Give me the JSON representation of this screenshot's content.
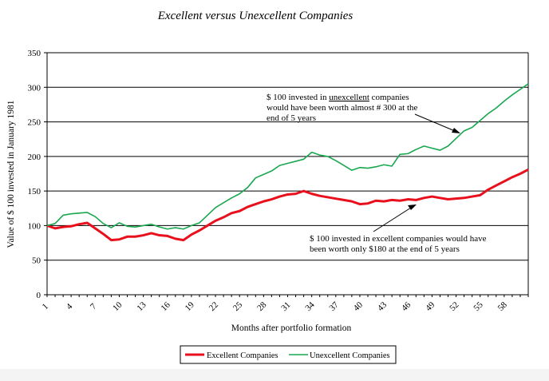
{
  "chart_data": {
    "type": "line",
    "title": "Excellent versus Unexcellent Companies",
    "xlabel": "Months after portfolio formation",
    "ylabel": "Value of $ 100 invested in January 1981",
    "ylim": [
      0,
      350
    ],
    "yticks": [
      0,
      50,
      100,
      150,
      200,
      250,
      300,
      350
    ],
    "xlim": [
      1,
      61
    ],
    "xticks": [
      1,
      4,
      7,
      10,
      13,
      16,
      19,
      22,
      25,
      28,
      31,
      34,
      37,
      40,
      43,
      46,
      49,
      52,
      55,
      58
    ],
    "grid": "horizontal",
    "legend_position": "bottom",
    "x": [
      1,
      2,
      3,
      4,
      5,
      6,
      7,
      8,
      9,
      10,
      11,
      12,
      13,
      14,
      15,
      16,
      17,
      18,
      19,
      20,
      21,
      22,
      23,
      24,
      25,
      26,
      27,
      28,
      29,
      30,
      31,
      32,
      33,
      34,
      35,
      36,
      37,
      38,
      39,
      40,
      41,
      42,
      43,
      44,
      45,
      46,
      47,
      48,
      49,
      50,
      51,
      52,
      53,
      54,
      55,
      56,
      57,
      58,
      59,
      60,
      61
    ],
    "series": [
      {
        "name": "Excellent Companies",
        "color": "#e8101c",
        "values": [
          100,
          96,
          98,
          99,
          102,
          104,
          96,
          88,
          79,
          80,
          84,
          84,
          86,
          89,
          86,
          85,
          81,
          79,
          87,
          93,
          100,
          107,
          112,
          118,
          121,
          127,
          131,
          135,
          138,
          142,
          145,
          146,
          150,
          146,
          143,
          141,
          139,
          137,
          135,
          131,
          132,
          136,
          135,
          137,
          136,
          138,
          137,
          140,
          142,
          140,
          138,
          139,
          140,
          142,
          144,
          152,
          158,
          164,
          170,
          175,
          181
        ]
      },
      {
        "name": "Unexcellent Companies",
        "color": "#19a750",
        "values": [
          100,
          103,
          115,
          117,
          118,
          119,
          113,
          103,
          97,
          104,
          99,
          98,
          100,
          102,
          98,
          95,
          97,
          95,
          100,
          104,
          115,
          126,
          133,
          140,
          146,
          155,
          169,
          174,
          179,
          187,
          190,
          193,
          196,
          206,
          202,
          200,
          194,
          187,
          180,
          184,
          183,
          185,
          188,
          186,
          203,
          204,
          210,
          215,
          212,
          209,
          215,
          226,
          237,
          242,
          252,
          262,
          270,
          280,
          289,
          297,
          305
        ]
      }
    ],
    "annotations": [
      {
        "lines": [
          "$ 100 invested in ",
          "unexcellent",
          " companies",
          "would have been worth almost # 300 at the",
          "end of 5 years"
        ],
        "points_to": "Unexcellent Companies"
      },
      {
        "lines": [
          "$ 100 invested in excellent companies would have",
          "been worth only $180 at the end of 5 years"
        ],
        "points_to": "Excellent Companies"
      }
    ]
  }
}
